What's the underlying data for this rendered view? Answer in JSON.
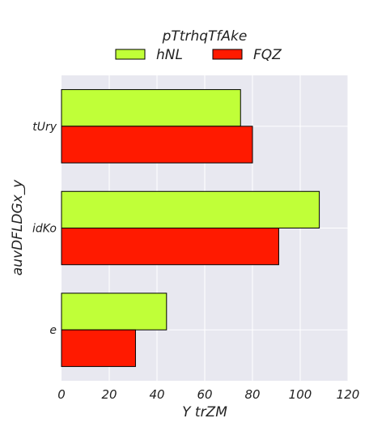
{
  "chart_data": {
    "type": "bar",
    "orientation": "horizontal",
    "categories": [
      "tUry",
      "idKo",
      "e"
    ],
    "series": [
      {
        "name": "hNL",
        "values": [
          75,
          108,
          44
        ],
        "color": "#c0ff38"
      },
      {
        "name": "FQZ",
        "values": [
          80,
          91,
          31
        ],
        "color": "#ff1a00"
      }
    ],
    "legend_title": "pTtrhqTfAke",
    "xlabel": "Y trZM",
    "ylabel": "auvDFLDGx_y",
    "xlim": [
      0,
      120
    ],
    "xticks": [
      0,
      20,
      40,
      60,
      80,
      100,
      120
    ],
    "grid": true,
    "legend_position": "top-center",
    "plot_background": "#e8e8f0",
    "grid_color": "#ffffff"
  }
}
